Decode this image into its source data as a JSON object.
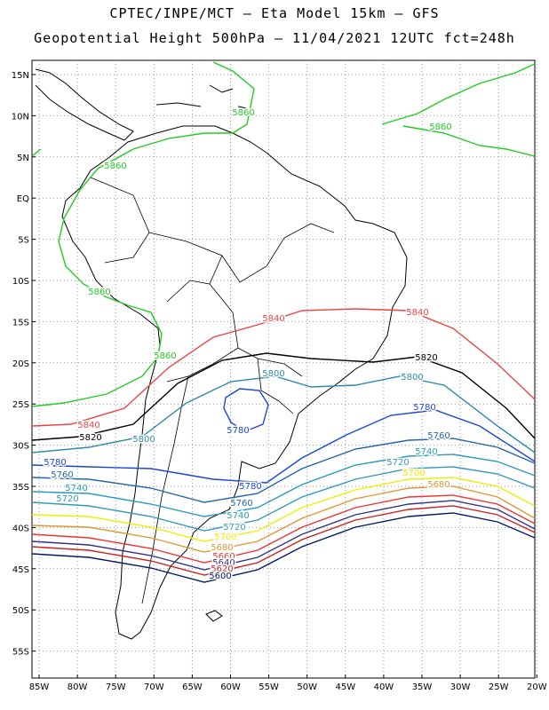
{
  "header": {
    "line1": "CPTEC/INPE/MCT –  Eta Model 15km – GFS",
    "line2": "Geopotential Height 500hPa – 11/04/2021 12UTC fct=248h"
  },
  "map": {
    "lat_range": [
      -58,
      16
    ],
    "lon_range": [
      -86,
      -20
    ],
    "lat_ticks": [
      "15N",
      "10N",
      "5N",
      "EQ",
      "5S",
      "10S",
      "15S",
      "20S",
      "25S",
      "30S",
      "35S",
      "40S",
      "45S",
      "50S",
      "55S"
    ],
    "lon_ticks": [
      "85W",
      "80W",
      "75W",
      "70W",
      "65W",
      "60W",
      "55W",
      "50W",
      "45W",
      "40W",
      "35W",
      "30W",
      "25W",
      "20W"
    ]
  },
  "contours": [
    {
      "value": 5860,
      "color": "#22cc22",
      "labels": [
        "5860",
        "5860",
        "5860",
        "5860",
        "5860"
      ]
    },
    {
      "value": 5840,
      "color": "#ee4444",
      "labels": [
        "5840",
        "5840",
        "5840"
      ]
    },
    {
      "value": 5820,
      "color": "#000000",
      "labels": [
        "5820",
        "5820"
      ]
    },
    {
      "value": 5800,
      "color": "#2a8aaa",
      "labels": [
        "5800",
        "5800",
        "5800"
      ]
    },
    {
      "value": 5780,
      "color": "#1a44dd",
      "labels": [
        "5780",
        "5780",
        "5780",
        "5780"
      ]
    },
    {
      "value": 5760,
      "color": "#2266aa",
      "labels": [
        "5760",
        "5760",
        "5760"
      ]
    },
    {
      "value": 5740,
      "color": "#2a9abb",
      "labels": [
        "5740",
        "5740",
        "5740"
      ]
    },
    {
      "value": 5720,
      "color": "#3399bb",
      "labels": [
        "5720",
        "5720",
        "5720"
      ]
    },
    {
      "value": 5700,
      "color": "#eeee00",
      "labels": [
        "5700",
        "5700"
      ]
    },
    {
      "value": 5680,
      "color": "#dd9933",
      "labels": [
        "5680",
        "5680"
      ]
    },
    {
      "value": 5660,
      "color": "#ee3333",
      "labels": [
        "5660"
      ]
    },
    {
      "value": 5640,
      "color": "#333388",
      "labels": [
        "5640"
      ]
    },
    {
      "value": 5620,
      "color": "#cc2222",
      "labels": [
        "5620"
      ]
    },
    {
      "value": 5600,
      "color": "#001a66",
      "labels": [
        "5600"
      ]
    }
  ],
  "colors": {
    "land": "#000000",
    "grid": "#999999"
  }
}
